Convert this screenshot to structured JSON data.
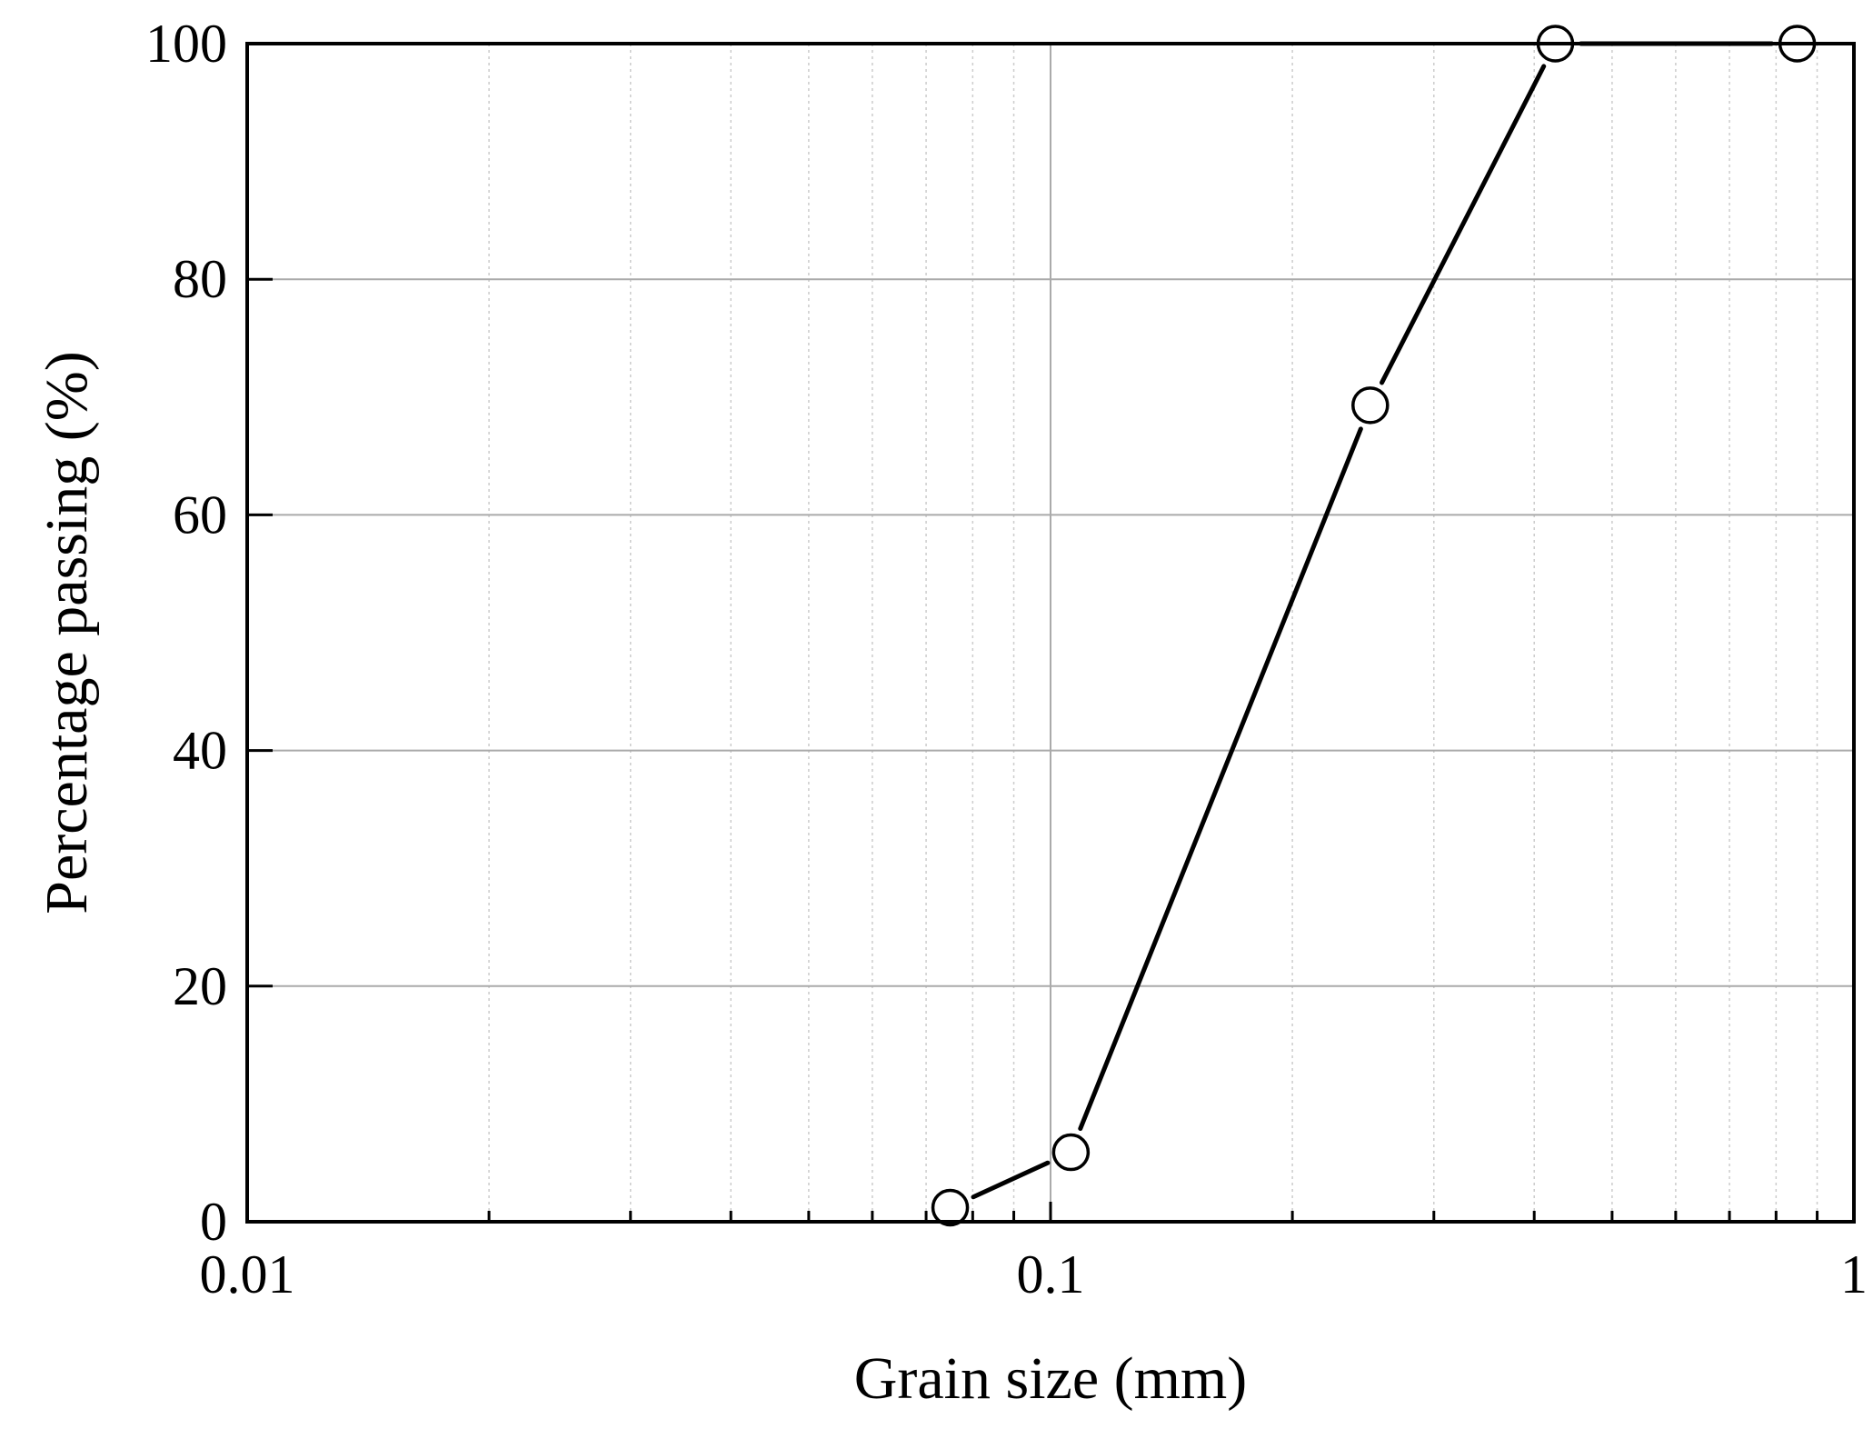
{
  "chart_data": {
    "type": "line",
    "xscale": "log",
    "title": "",
    "xlabel": "Grain size  (mm)",
    "ylabel": "Percentage passing (%)",
    "xlim": [
      0.01,
      1
    ],
    "ylim": [
      0,
      100
    ],
    "xticks": [
      0.01,
      0.1,
      1
    ],
    "xtick_labels": [
      "0.01",
      "0.1",
      "1"
    ],
    "yticks": [
      0,
      20,
      40,
      60,
      80,
      100
    ],
    "ytick_labels": [
      "0",
      "20",
      "40",
      "60",
      "80",
      "100"
    ],
    "grid": true,
    "legend": "none",
    "series": [
      {
        "x": [
          0.075,
          0.106,
          0.25,
          0.425,
          0.85
        ],
        "y": [
          1.2,
          5.9,
          69.3,
          100,
          100
        ],
        "marker": "open-circle",
        "color": "#000000"
      }
    ]
  }
}
